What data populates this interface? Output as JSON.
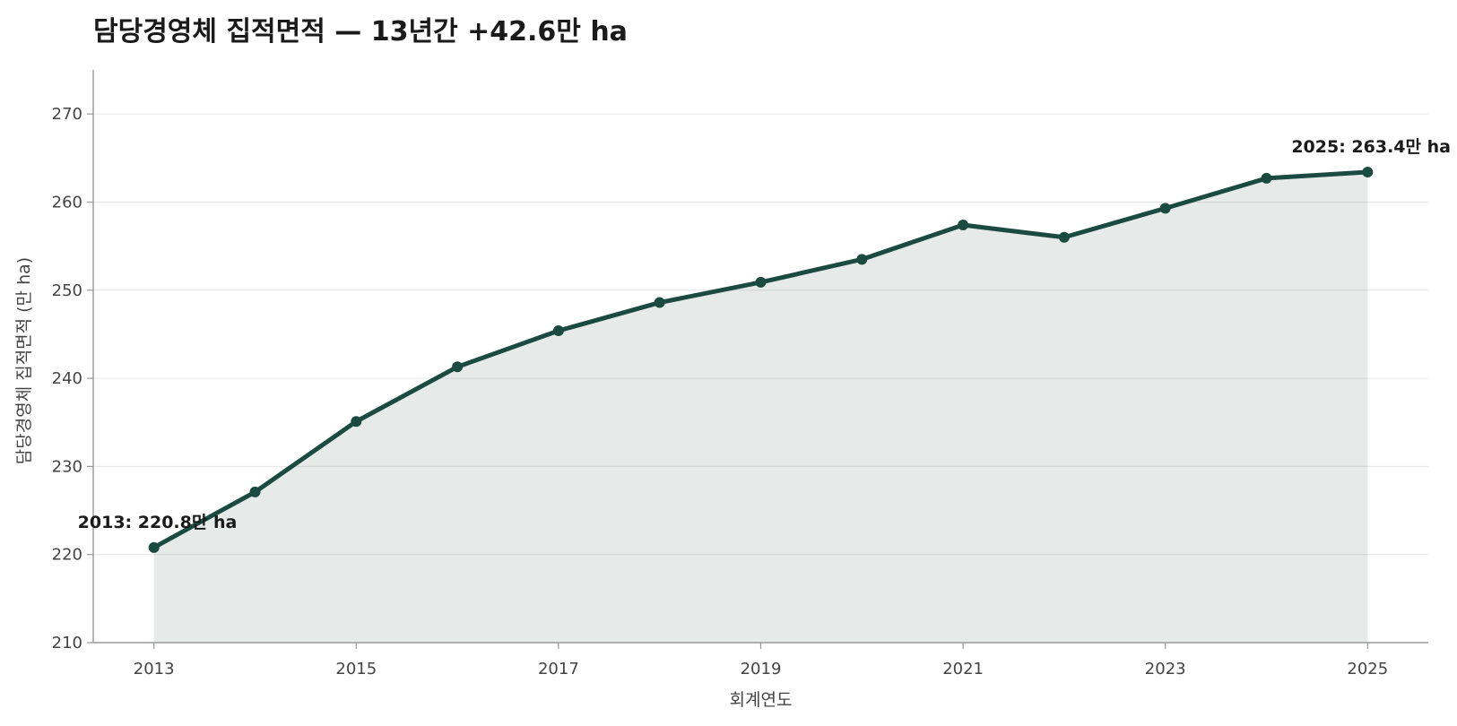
{
  "chart_data": {
    "type": "line",
    "title": "담당경영체 집적면적 — 13년간 +42.6만 ha",
    "xlabel": "회계연도",
    "ylabel": "담당경영체 집적면적 (만 ha)",
    "x": [
      2013,
      2014,
      2015,
      2016,
      2017,
      2018,
      2019,
      2020,
      2021,
      2022,
      2023,
      2024,
      2025
    ],
    "series": [
      {
        "values": [
          220.8,
          227.1,
          235.1,
          241.3,
          245.4,
          248.6,
          250.9,
          253.5,
          257.4,
          256.0,
          259.3,
          262.7,
          263.4
        ]
      }
    ],
    "xticks": [
      2013,
      2015,
      2017,
      2019,
      2021,
      2023,
      2025
    ],
    "yticks": [
      210,
      220,
      230,
      240,
      250,
      260,
      270
    ],
    "xlim": [
      2012.4,
      2025.6
    ],
    "ylim": [
      210,
      275
    ],
    "grid": "horizontal",
    "annotations": [
      {
        "x": 2013,
        "text": "2013: 220.8만 ha"
      },
      {
        "x": 2025,
        "text": "2025: 263.4만 ha"
      }
    ],
    "colors": {
      "line": "#1b4a40",
      "fill": "#1b4a40",
      "grid": "#e6e6e6",
      "axis": "#999999"
    }
  }
}
